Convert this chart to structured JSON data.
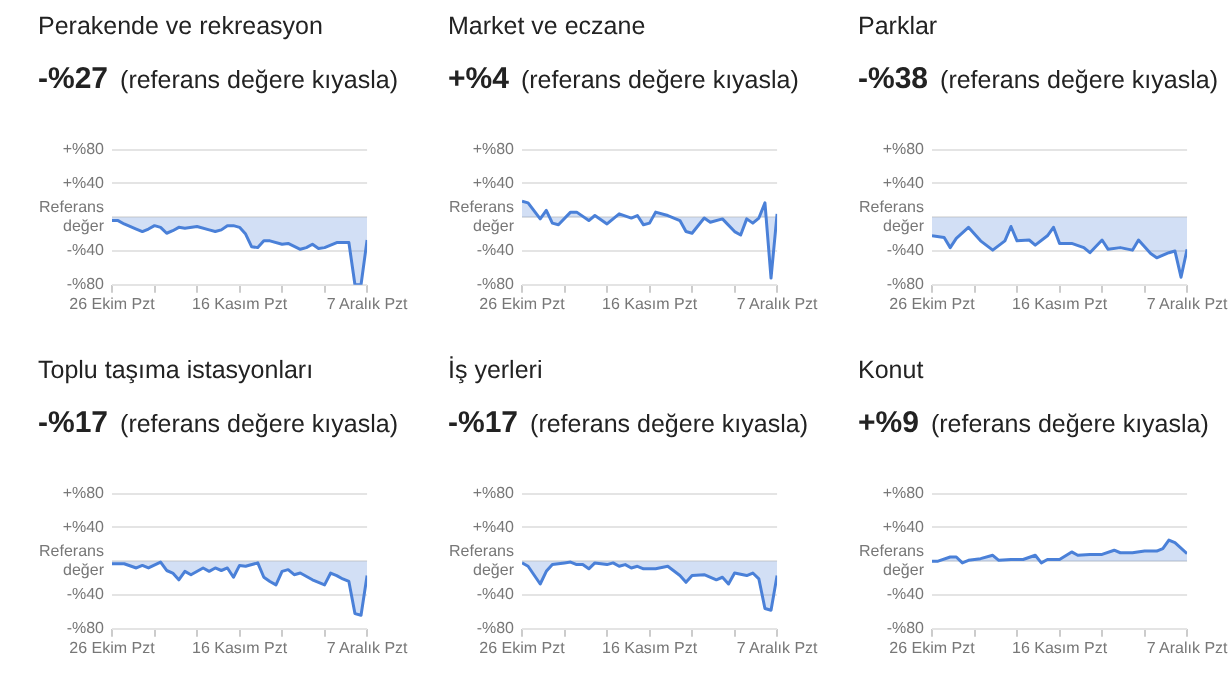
{
  "chart_data": [
    {
      "type": "area",
      "title": "Perakende ve rekreasyon",
      "subtitle": "-%27",
      "annotations": [
        "(referans değere kıyasla)"
      ],
      "color": "#4a80d8",
      "grid": "y",
      "xlim": [
        "--10-26",
        "--12-07"
      ],
      "ylim": [
        -80,
        80
      ],
      "xticks": [
        {
          "value": "--10-26",
          "label": "26 Ekim Pzt"
        },
        {
          "value": "--11-02",
          "label": null
        },
        {
          "value": "--11-09",
          "label": null
        },
        {
          "value": "--11-16",
          "label": "16 Kasım Pzt"
        },
        {
          "value": "--11-23",
          "label": null
        },
        {
          "value": "--11-30",
          "label": null
        },
        {
          "value": "--12-07",
          "label": "7 Aralık Pzt"
        }
      ],
      "yticks": [
        {
          "value": 80,
          "label": "+%80"
        },
        {
          "value": 40,
          "label": "+%40"
        },
        {
          "value": 0,
          "label": "Referans değer"
        },
        {
          "value": -40,
          "label": "-%40"
        },
        {
          "value": -80,
          "label": "-%80"
        }
      ],
      "x": [
        "--10-26",
        "--10-27",
        "--10-28",
        "--10-30",
        "--10-31",
        "--11-01",
        "--11-02",
        "--11-03",
        "--11-04",
        "--11-05",
        "--11-06",
        "--11-07",
        "--11-09",
        "--11-11",
        "--11-12",
        "--11-13",
        "--11-14",
        "--11-15",
        "--11-16",
        "--11-17",
        "--11-18",
        "--11-19",
        "--11-20",
        "--11-21",
        "--11-23",
        "--11-24",
        "--11-26",
        "--11-27",
        "--11-28",
        "--11-29",
        "--11-30",
        "--12-01",
        "--12-02",
        "--12-03",
        "--12-04",
        "--12-05",
        "--12-06",
        "--12-07"
      ],
      "values": [
        -4,
        -4,
        -8,
        -14,
        -17,
        -14,
        -10,
        -12,
        -19,
        -16,
        -12,
        -13,
        -11,
        -15,
        -17,
        -15,
        -10,
        -10,
        -12,
        -20,
        -35,
        -36,
        -28,
        -28,
        -32,
        -31,
        -38,
        -36,
        -32,
        -37,
        -36,
        -33,
        -30,
        -30,
        -30,
        -80,
        -80,
        -27
      ]
    },
    {
      "type": "area",
      "title": "Market ve eczane",
      "subtitle": "+%4",
      "annotations": [
        "(referans değere kıyasla)"
      ],
      "color": "#4a80d8",
      "grid": "y",
      "xlim": [
        "--10-26",
        "--12-07"
      ],
      "ylim": [
        -80,
        80
      ],
      "xticks": [
        {
          "value": "--10-26",
          "label": "26 Ekim Pzt"
        },
        {
          "value": "--11-02",
          "label": null
        },
        {
          "value": "--11-09",
          "label": null
        },
        {
          "value": "--11-16",
          "label": "16 Kasım Pzt"
        },
        {
          "value": "--11-23",
          "label": null
        },
        {
          "value": "--11-30",
          "label": null
        },
        {
          "value": "--12-07",
          "label": "7 Aralık Pzt"
        }
      ],
      "yticks": [
        {
          "value": 80,
          "label": "+%80"
        },
        {
          "value": 40,
          "label": "+%40"
        },
        {
          "value": 0,
          "label": "Referans değer"
        },
        {
          "value": -40,
          "label": "-%40"
        },
        {
          "value": -80,
          "label": "-%80"
        }
      ],
      "x": [
        "--10-26",
        "--10-27",
        "--10-29",
        "--10-30",
        "--10-31",
        "--11-01",
        "--11-03",
        "--11-04",
        "--11-06",
        "--11-07",
        "--11-09",
        "--11-11",
        "--11-13",
        "--11-14",
        "--11-15",
        "--11-16",
        "--11-17",
        "--11-19",
        "--11-21",
        "--11-22",
        "--11-23",
        "--11-25",
        "--11-26",
        "--11-28",
        "--11-30",
        "--12-01",
        "--12-02",
        "--12-03",
        "--12-04",
        "--12-05",
        "--12-06",
        "--12-07"
      ],
      "values": [
        19,
        17,
        -2,
        8,
        -7,
        -9,
        6,
        6,
        -4,
        2,
        -8,
        4,
        -1,
        2,
        -9,
        -7,
        6,
        2,
        -4,
        -17,
        -19,
        -1,
        -6,
        -2,
        -17,
        -21,
        -2,
        -7,
        -1,
        17,
        -72,
        4
      ]
    },
    {
      "type": "area",
      "title": "Parklar",
      "subtitle": "-%38",
      "annotations": [
        "(referans değere kıyasla)"
      ],
      "color": "#4a80d8",
      "grid": "y",
      "xlim": [
        "--10-26",
        "--12-07"
      ],
      "ylim": [
        -80,
        80
      ],
      "xticks": [
        {
          "value": "--10-26",
          "label": "26 Ekim Pzt"
        },
        {
          "value": "--11-02",
          "label": null
        },
        {
          "value": "--11-09",
          "label": null
        },
        {
          "value": "--11-16",
          "label": "16 Kasım Pzt"
        },
        {
          "value": "--11-23",
          "label": null
        },
        {
          "value": "--11-30",
          "label": null
        },
        {
          "value": "--12-07",
          "label": "7 Aralık Pzt"
        }
      ],
      "yticks": [
        {
          "value": 80,
          "label": "+%80"
        },
        {
          "value": 40,
          "label": "+%40"
        },
        {
          "value": 0,
          "label": "Referans değer"
        },
        {
          "value": -40,
          "label": "-%40"
        },
        {
          "value": -80,
          "label": "-%80"
        }
      ],
      "x": [
        "--10-26",
        "--10-28",
        "--10-29",
        "--10-30",
        "--11-01",
        "--11-03",
        "--11-05",
        "--11-07",
        "--11-08",
        "--11-09",
        "--11-11",
        "--11-12",
        "--11-14",
        "--11-15",
        "--11-16",
        "--11-18",
        "--11-20",
        "--11-21",
        "--11-23",
        "--11-24",
        "--11-26",
        "--11-28",
        "--11-29",
        "--12-01",
        "--12-02",
        "--12-04",
        "--12-05",
        "--12-06",
        "--12-07"
      ],
      "values": [
        -22,
        -24,
        -36,
        -25,
        -12,
        -28,
        -39,
        -28,
        -11,
        -28,
        -27,
        -33,
        -22,
        -12,
        -31,
        -31,
        -36,
        -42,
        -27,
        -38,
        -36,
        -39,
        -27,
        -43,
        -48,
        -42,
        -40,
        -71,
        -38
      ]
    },
    {
      "type": "area",
      "title": "Toplu taşıma istasyonları",
      "subtitle": "-%17",
      "annotations": [
        "(referans değere kıyasla)"
      ],
      "color": "#4a80d8",
      "grid": "y",
      "xlim": [
        "--10-26",
        "--12-07"
      ],
      "ylim": [
        -80,
        80
      ],
      "xticks": [
        {
          "value": "--10-26",
          "label": "26 Ekim Pzt"
        },
        {
          "value": "--11-02",
          "label": null
        },
        {
          "value": "--11-09",
          "label": null
        },
        {
          "value": "--11-16",
          "label": "16 Kasım Pzt"
        },
        {
          "value": "--11-23",
          "label": null
        },
        {
          "value": "--11-30",
          "label": null
        },
        {
          "value": "--12-07",
          "label": "7 Aralık Pzt"
        }
      ],
      "yticks": [
        {
          "value": 80,
          "label": "+%80"
        },
        {
          "value": 40,
          "label": "+%40"
        },
        {
          "value": 0,
          "label": "Referans değer"
        },
        {
          "value": -40,
          "label": "-%40"
        },
        {
          "value": -80,
          "label": "-%80"
        }
      ],
      "x": [
        "--10-26",
        "--10-28",
        "--10-30",
        "--10-31",
        "--11-01",
        "--11-03",
        "--11-04",
        "--11-05",
        "--11-06",
        "--11-07",
        "--11-08",
        "--11-10",
        "--11-11",
        "--11-12",
        "--11-13",
        "--11-14",
        "--11-15",
        "--11-16",
        "--11-17",
        "--11-19",
        "--11-20",
        "--11-21",
        "--11-22",
        "--11-23",
        "--11-24",
        "--11-25",
        "--11-26",
        "--11-28",
        "--11-30",
        "--12-01",
        "--12-02",
        "--12-03",
        "--12-04",
        "--12-05",
        "--12-06",
        "--12-07"
      ],
      "values": [
        -3,
        -3,
        -8,
        -5,
        -8,
        -1,
        -11,
        -14,
        -22,
        -12,
        -16,
        -8,
        -12,
        -8,
        -11,
        -8,
        -19,
        -5,
        -6,
        -2,
        -19,
        -24,
        -28,
        -12,
        -10,
        -16,
        -14,
        -22,
        -28,
        -14,
        -17,
        -21,
        -24,
        -62,
        -64,
        -17
      ]
    },
    {
      "type": "area",
      "title": "İş yerleri",
      "subtitle": "-%17",
      "annotations": [
        "(referans değere kıyasla)"
      ],
      "color": "#4a80d8",
      "grid": "y",
      "xlim": [
        "--10-26",
        "--12-07"
      ],
      "ylim": [
        -80,
        80
      ],
      "xticks": [
        {
          "value": "--10-26",
          "label": "26 Ekim Pzt"
        },
        {
          "value": "--11-02",
          "label": null
        },
        {
          "value": "--11-09",
          "label": null
        },
        {
          "value": "--11-16",
          "label": "16 Kasım Pzt"
        },
        {
          "value": "--11-23",
          "label": null
        },
        {
          "value": "--11-30",
          "label": null
        },
        {
          "value": "--12-07",
          "label": "7 Aralık Pzt"
        }
      ],
      "yticks": [
        {
          "value": 80,
          "label": "+%80"
        },
        {
          "value": 40,
          "label": "+%40"
        },
        {
          "value": 0,
          "label": "Referans değer"
        },
        {
          "value": -40,
          "label": "-%40"
        },
        {
          "value": -80,
          "label": "-%80"
        }
      ],
      "x": [
        "--10-26",
        "--10-27",
        "--10-29",
        "--10-30",
        "--10-31",
        "--11-02",
        "--11-03",
        "--11-04",
        "--11-05",
        "--11-06",
        "--11-07",
        "--11-09",
        "--11-10",
        "--11-11",
        "--11-12",
        "--11-13",
        "--11-14",
        "--11-15",
        "--11-17",
        "--11-19",
        "--11-21",
        "--11-22",
        "--11-23",
        "--11-25",
        "--11-27",
        "--11-28",
        "--11-29",
        "--11-30",
        "--12-02",
        "--12-03",
        "--12-04",
        "--12-05",
        "--12-06",
        "--12-07"
      ],
      "values": [
        -2,
        -6,
        -27,
        -12,
        -4,
        -2,
        -1,
        -4,
        -4,
        -9,
        -2,
        -4,
        -2,
        -6,
        -4,
        -8,
        -6,
        -9,
        -9,
        -6,
        -17,
        -25,
        -17,
        -16,
        -22,
        -19,
        -27,
        -14,
        -17,
        -14,
        -21,
        -56,
        -58,
        -17
      ]
    },
    {
      "type": "area",
      "title": "Konut",
      "subtitle": "+%9",
      "annotations": [
        "(referans değere kıyasla)"
      ],
      "color": "#4a80d8",
      "grid": "y",
      "xlim": [
        "--10-26",
        "--12-07"
      ],
      "ylim": [
        -80,
        80
      ],
      "xticks": [
        {
          "value": "--10-26",
          "label": "26 Ekim Pzt"
        },
        {
          "value": "--11-02",
          "label": null
        },
        {
          "value": "--11-09",
          "label": null
        },
        {
          "value": "--11-16",
          "label": "16 Kasım Pzt"
        },
        {
          "value": "--11-23",
          "label": null
        },
        {
          "value": "--11-30",
          "label": null
        },
        {
          "value": "--12-07",
          "label": "7 Aralık Pzt"
        }
      ],
      "yticks": [
        {
          "value": 80,
          "label": "+%80"
        },
        {
          "value": 40,
          "label": "+%40"
        },
        {
          "value": 0,
          "label": "Referans değer"
        },
        {
          "value": -40,
          "label": "-%40"
        },
        {
          "value": -80,
          "label": "-%80"
        }
      ],
      "x": [
        "--10-26",
        "--10-27",
        "--10-29",
        "--10-30",
        "--10-31",
        "--11-01",
        "--11-03",
        "--11-05",
        "--11-06",
        "--11-08",
        "--11-10",
        "--11-12",
        "--11-13",
        "--11-14",
        "--11-16",
        "--11-18",
        "--11-19",
        "--11-21",
        "--11-23",
        "--11-25",
        "--11-26",
        "--11-28",
        "--11-30",
        "--12-02",
        "--12-03",
        "--12-04",
        "--12-05",
        "--12-07"
      ],
      "values": [
        0,
        0,
        5,
        5,
        -2,
        1,
        3,
        7,
        1,
        2,
        2,
        7,
        -2,
        2,
        2,
        11,
        7,
        8,
        8,
        13,
        10,
        10,
        12,
        12,
        15,
        25,
        22,
        9
      ]
    }
  ]
}
